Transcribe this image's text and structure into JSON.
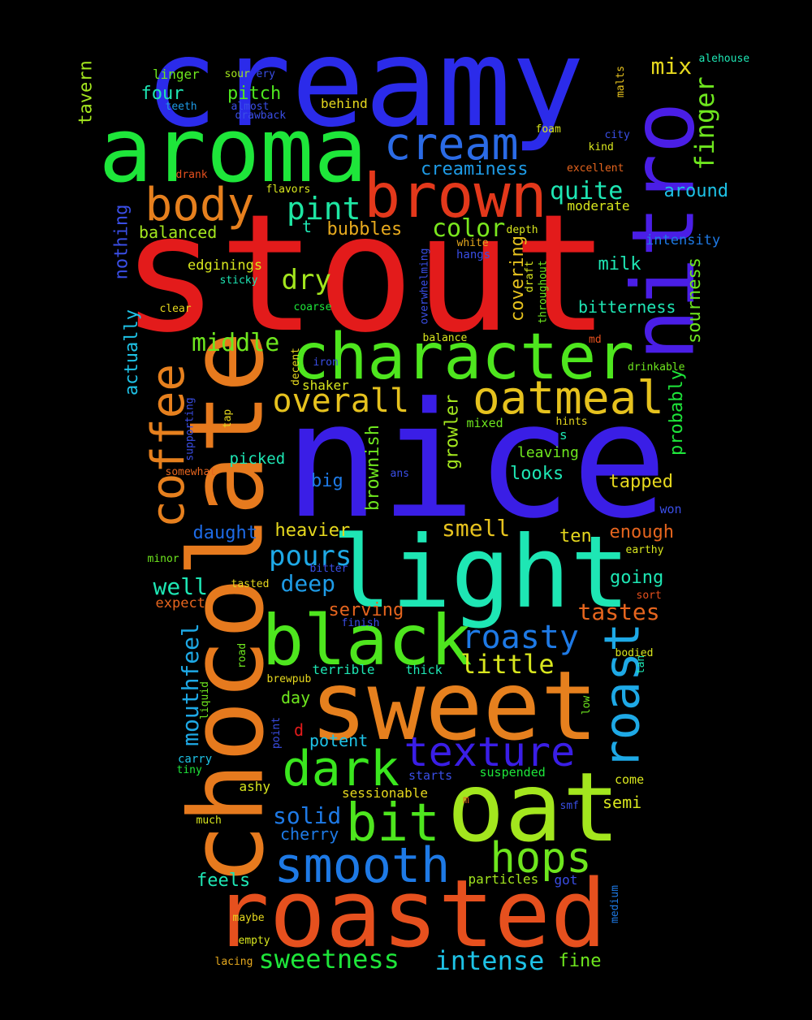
{
  "words": [
    {
      "text": "creamy",
      "color": "#2b2bea"
    },
    {
      "text": "stout",
      "color": "#e31b1b"
    },
    {
      "text": "nice",
      "color": "#3a1ee6"
    },
    {
      "text": "aroma",
      "color": "#1ee63a"
    },
    {
      "text": "brown",
      "color": "#e3381b"
    },
    {
      "text": "nitro",
      "color": "#4a1ee6"
    },
    {
      "text": "chocolate",
      "color": "#e67a1e"
    },
    {
      "text": "light",
      "color": "#1ee6b4"
    },
    {
      "text": "sweet",
      "color": "#e6801e"
    },
    {
      "text": "roasted",
      "color": "#e6501e"
    },
    {
      "text": "oat",
      "color": "#a3e61e"
    },
    {
      "text": "black",
      "color": "#4ee61e"
    },
    {
      "text": "character",
      "color": "#4ee61e"
    },
    {
      "text": "oatmeal",
      "color": "#e6c21e"
    },
    {
      "text": "cream",
      "color": "#2b6be6"
    },
    {
      "text": "body",
      "color": "#e6801e"
    },
    {
      "text": "coffee",
      "color": "#e6801e"
    },
    {
      "text": "roast",
      "color": "#1ea9e6"
    },
    {
      "text": "smooth",
      "color": "#1e7ae6"
    },
    {
      "text": "dark",
      "color": "#3ae61e"
    },
    {
      "text": "texture",
      "color": "#3a1ee6"
    },
    {
      "text": "bit",
      "color": "#4ee61e"
    },
    {
      "text": "hops",
      "color": "#6ee61e"
    },
    {
      "text": "pint",
      "color": "#1ee6a3"
    },
    {
      "text": "overall",
      "color": "#e6c21e"
    },
    {
      "text": "finger",
      "color": "#6ee61e"
    },
    {
      "text": "roasty",
      "color": "#1e7ae6"
    },
    {
      "text": "dry",
      "color": "#a3e61e"
    },
    {
      "text": "quite",
      "color": "#1ee6b4"
    },
    {
      "text": "color",
      "color": "#7ae61e"
    },
    {
      "text": "mix",
      "color": "#e6d81e"
    },
    {
      "text": "middle",
      "color": "#6ee61e"
    },
    {
      "text": "pours",
      "color": "#1ea9e6"
    },
    {
      "text": "little",
      "color": "#d8e61e"
    },
    {
      "text": "sweetness",
      "color": "#1ee63a"
    },
    {
      "text": "intense",
      "color": "#1ec2e6"
    },
    {
      "text": "tastes",
      "color": "#e6651e"
    },
    {
      "text": "smell",
      "color": "#e6c21e"
    },
    {
      "text": "mouthfeel",
      "color": "#1ea9e6"
    },
    {
      "text": "deep",
      "color": "#1e9be6"
    },
    {
      "text": "well",
      "color": "#1ee6b4"
    },
    {
      "text": "solid",
      "color": "#1e7ae6"
    },
    {
      "text": "creaminess",
      "color": "#1e9be6"
    },
    {
      "text": "four",
      "color": "#1ee6b4"
    },
    {
      "text": "pitch",
      "color": "#4ee61e"
    },
    {
      "text": "around",
      "color": "#1ec2e6"
    },
    {
      "text": "milk",
      "color": "#1ee6b4"
    },
    {
      "text": "bitterness",
      "color": "#1ee6b4"
    },
    {
      "text": "sourness",
      "color": "#6ee61e"
    },
    {
      "text": "probably",
      "color": "#1ee63a"
    },
    {
      "text": "nothing",
      "color": "#3a4ee6"
    },
    {
      "text": "actually",
      "color": "#1ec2e6"
    },
    {
      "text": "tavern",
      "color": "#a3e61e"
    },
    {
      "text": "bubbles",
      "color": "#e6a91e"
    },
    {
      "text": "balanced",
      "color": "#a3e61e"
    },
    {
      "text": "covering",
      "color": "#e6c21e"
    },
    {
      "text": "growler",
      "color": "#a3e61e"
    },
    {
      "text": "brownish",
      "color": "#6ee61e"
    },
    {
      "text": "intensity",
      "color": "#1e7ae6"
    },
    {
      "text": "heavier",
      "color": "#e6d81e"
    },
    {
      "text": "daught",
      "color": "#1e6be6"
    },
    {
      "text": "serving",
      "color": "#e6651e"
    },
    {
      "text": "enough",
      "color": "#e6651e"
    },
    {
      "text": "going",
      "color": "#1ee6b4"
    },
    {
      "text": "tapped",
      "color": "#e6d81e"
    },
    {
      "text": "looks",
      "color": "#1ee6b4"
    },
    {
      "text": "ten",
      "color": "#e6d81e"
    },
    {
      "text": "big",
      "color": "#1e7ae6"
    },
    {
      "text": "picked",
      "color": "#1ee6b4"
    },
    {
      "text": "leaving",
      "color": "#6ee61e"
    },
    {
      "text": "expect",
      "color": "#e6651e"
    },
    {
      "text": "day",
      "color": "#6ee61e"
    },
    {
      "text": "potent",
      "color": "#1ec2e6"
    },
    {
      "text": "semi",
      "color": "#d8e61e"
    },
    {
      "text": "cherry",
      "color": "#1e7ae6"
    },
    {
      "text": "feels",
      "color": "#1ee6b4"
    },
    {
      "text": "fine",
      "color": "#6ee61e"
    },
    {
      "text": "edginings",
      "color": "#d8e61e"
    },
    {
      "text": "linger",
      "color": "#6ee61e"
    },
    {
      "text": "behind",
      "color": "#e6d81e"
    },
    {
      "text": "teeth",
      "color": "#1e9be6"
    },
    {
      "text": "almost",
      "color": "#3a4ee6"
    },
    {
      "text": "drawback",
      "color": "#3a4ee6"
    },
    {
      "text": "sour",
      "color": "#a3e61e"
    },
    {
      "text": "ery",
      "color": "#3a4ee6"
    },
    {
      "text": "alehouse",
      "color": "#1ee6b4"
    },
    {
      "text": "malts",
      "color": "#e6c21e"
    },
    {
      "text": "foam",
      "color": "#d8e61e"
    },
    {
      "text": "city",
      "color": "#3a4ee6"
    },
    {
      "text": "kind",
      "color": "#d8e61e"
    },
    {
      "text": "excellent",
      "color": "#e6651e"
    },
    {
      "text": "moderate",
      "color": "#d8e61e"
    },
    {
      "text": "drank",
      "color": "#e6501e"
    },
    {
      "text": "flavors",
      "color": "#d8e61e"
    },
    {
      "text": "t",
      "color": "#1ee6b4"
    },
    {
      "text": "white",
      "color": "#e6a91e"
    },
    {
      "text": "depth",
      "color": "#d8e61e"
    },
    {
      "text": "hangs",
      "color": "#3a4ee6"
    },
    {
      "text": "overwhelming",
      "color": "#3a4ee6"
    },
    {
      "text": "draft",
      "color": "#d8e61e"
    },
    {
      "text": "throughout",
      "color": "#6ee61e"
    },
    {
      "text": "sticky",
      "color": "#1ee6b4"
    },
    {
      "text": "clear",
      "color": "#e6d81e"
    },
    {
      "text": "coarse",
      "color": "#1ee63a"
    },
    {
      "text": "balance",
      "color": "#d8e61e"
    },
    {
      "text": "md",
      "color": "#e6501e"
    },
    {
      "text": "iron",
      "color": "#3a4ee6"
    },
    {
      "text": "decent",
      "color": "#e6d81e"
    },
    {
      "text": "shaker",
      "color": "#d8e61e"
    },
    {
      "text": "drinkable",
      "color": "#6ee61e"
    },
    {
      "text": "hints",
      "color": "#e6d81e"
    },
    {
      "text": "tap",
      "color": "#e6d81e"
    },
    {
      "text": "supporting",
      "color": "#3a4ee6"
    },
    {
      "text": "mixed",
      "color": "#6ee61e"
    },
    {
      "text": "s",
      "color": "#1ee6b4"
    },
    {
      "text": "somewhat",
      "color": "#e6651e"
    },
    {
      "text": "ans",
      "color": "#3a4ee6"
    },
    {
      "text": "won",
      "color": "#3a4ee6"
    },
    {
      "text": "minor",
      "color": "#6ee61e"
    },
    {
      "text": "bitter",
      "color": "#3a4ee6"
    },
    {
      "text": "earthy",
      "color": "#d8e61e"
    },
    {
      "text": "tasted",
      "color": "#e6d81e"
    },
    {
      "text": "sort",
      "color": "#e6501e"
    },
    {
      "text": "finish",
      "color": "#3a4ee6"
    },
    {
      "text": "bodied",
      "color": "#d8e61e"
    },
    {
      "text": "road",
      "color": "#6ee61e"
    },
    {
      "text": "brewpub",
      "color": "#e6d81e"
    },
    {
      "text": "terrible",
      "color": "#1ee6b4"
    },
    {
      "text": "thick",
      "color": "#1ee6b4"
    },
    {
      "text": "tan",
      "color": "#1ee6b4"
    },
    {
      "text": "liquid",
      "color": "#6ee61e"
    },
    {
      "text": "low",
      "color": "#6ee61e"
    },
    {
      "text": "d",
      "color": "#e31b1b"
    },
    {
      "text": "point",
      "color": "#3a4ee6"
    },
    {
      "text": "carry",
      "color": "#1ec2e6"
    },
    {
      "text": "tiny",
      "color": "#1ee63a"
    },
    {
      "text": "suspended",
      "color": "#1ee63a"
    },
    {
      "text": "starts",
      "color": "#3a4ee6"
    },
    {
      "text": "come",
      "color": "#d8e61e"
    },
    {
      "text": "ashy",
      "color": "#d8e61e"
    },
    {
      "text": "sessionable",
      "color": "#e6d81e"
    },
    {
      "text": "m",
      "color": "#e6651e"
    },
    {
      "text": "much",
      "color": "#d8e61e"
    },
    {
      "text": "smf",
      "color": "#3a4ee6"
    },
    {
      "text": "particles",
      "color": "#a3e61e"
    },
    {
      "text": "got",
      "color": "#3a4ee6"
    },
    {
      "text": "medium",
      "color": "#1e7ae6"
    },
    {
      "text": "maybe",
      "color": "#e6d81e"
    },
    {
      "text": "empty",
      "color": "#d8e61e"
    },
    {
      "text": "lacing",
      "color": "#e6a91e"
    }
  ]
}
